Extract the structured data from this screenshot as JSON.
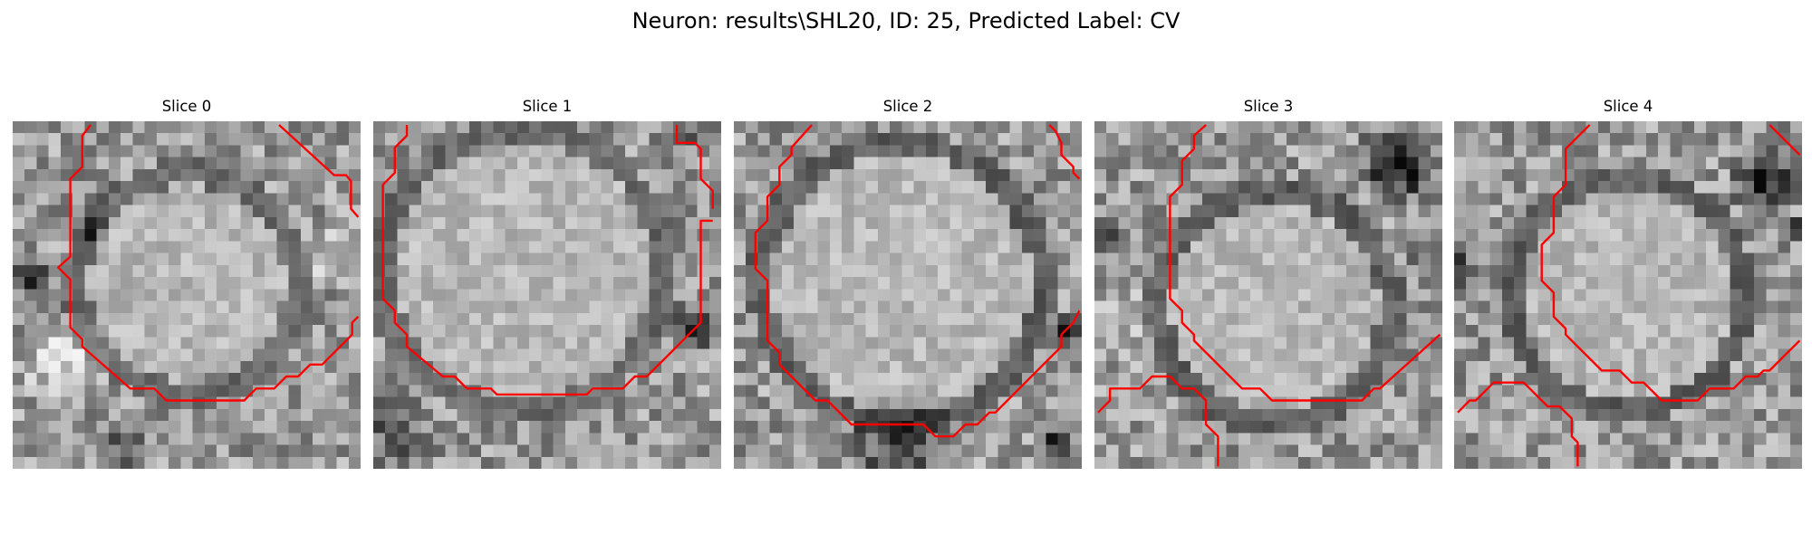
{
  "figure": {
    "title": "Neuron: results\\SHL20, ID: 25, Predicted Label: CV"
  },
  "slices": [
    {
      "title": "Slice 0"
    },
    {
      "title": "Slice 1"
    },
    {
      "title": "Slice 2"
    },
    {
      "title": "Slice 3"
    },
    {
      "title": "Slice 4"
    }
  ],
  "contour_color": "#ff0000",
  "image_style": "grayscale 29x29 pixel microscopy patch",
  "palette": {
    "background": "#ffffff",
    "text": "#000000"
  }
}
